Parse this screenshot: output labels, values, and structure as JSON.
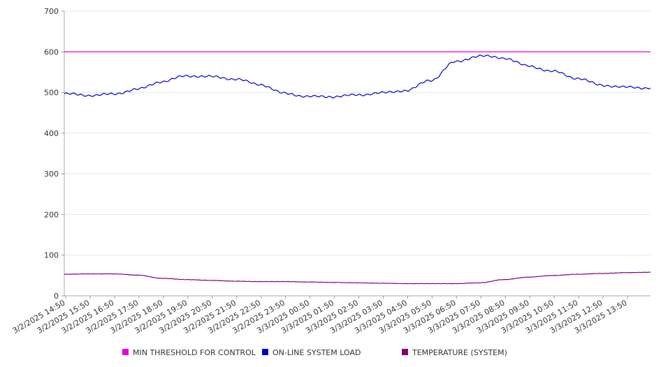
{
  "chart_data": {
    "type": "line",
    "title": "",
    "xlabel": "",
    "ylabel": "",
    "ylim": [
      0,
      700
    ],
    "y_ticks": [
      0,
      100,
      200,
      300,
      400,
      500,
      600,
      700
    ],
    "grid": "horizontal",
    "legend_position": "bottom",
    "x_tick_labels": [
      "3/2/2025 14:50",
      "3/2/2025 15:50",
      "3/2/2025 16:50",
      "3/2/2025 17:50",
      "3/2/2025 18:50",
      "3/2/2025 19:50",
      "3/2/2025 20:50",
      "3/2/2025 21:50",
      "3/2/2025 22:50",
      "3/2/2025 23:50",
      "3/3/2025 00:50",
      "3/3/2025 01:50",
      "3/3/2025 02:50",
      "3/3/2025 03:50",
      "3/3/2025 04:50",
      "3/3/2025 05:50",
      "3/3/2025 06:50",
      "3/3/2025 07:50",
      "3/3/2025 08:50",
      "3/3/2025 09:50",
      "3/3/2025 10:50",
      "3/3/2025 11:50",
      "3/3/2025 12:50",
      "3/3/2025 13:50"
    ],
    "x": [
      "3/2/2025 14:50",
      "3/2/2025 15:50",
      "3/2/2025 16:50",
      "3/2/2025 17:50",
      "3/2/2025 18:50",
      "3/2/2025 19:50",
      "3/2/2025 20:50",
      "3/2/2025 21:50",
      "3/2/2025 22:50",
      "3/2/2025 23:50",
      "3/3/2025 00:50",
      "3/3/2025 01:50",
      "3/3/2025 02:50",
      "3/3/2025 03:50",
      "3/3/2025 04:50",
      "3/3/2025 05:50",
      "3/3/2025 06:50",
      "3/3/2025 07:50",
      "3/3/2025 08:50",
      "3/3/2025 09:50",
      "3/3/2025 10:50",
      "3/3/2025 11:50",
      "3/3/2025 12:50",
      "3/3/2025 13:50",
      "3/3/2025 14:50"
    ],
    "series": [
      {
        "name": "MIN THRESHOLD FOR CONTROL",
        "color": "#e600e6",
        "values": [
          600,
          600,
          600,
          600,
          600,
          600,
          600,
          600,
          600,
          600,
          600,
          600,
          600,
          600,
          600,
          600,
          600,
          600,
          600,
          600,
          600,
          600,
          600,
          600,
          600
        ]
      },
      {
        "name": "ON-LINE SYSTEM LOAD",
        "color": "#0000cc",
        "values": [
          497,
          493,
          496,
          508,
          527,
          541,
          539,
          533,
          520,
          498,
          490,
          490,
          494,
          499,
          505,
          530,
          575,
          590,
          585,
          565,
          552,
          535,
          518,
          513,
          511
        ]
      },
      {
        "name": "TEMPERATURE (SYSTEM)",
        "color": "#800080",
        "values": [
          53,
          54,
          54,
          51,
          43,
          40,
          38,
          36,
          35,
          35,
          34,
          33,
          32,
          31,
          30,
          30,
          30,
          32,
          40,
          46,
          50,
          53,
          55,
          57,
          58
        ]
      }
    ]
  }
}
